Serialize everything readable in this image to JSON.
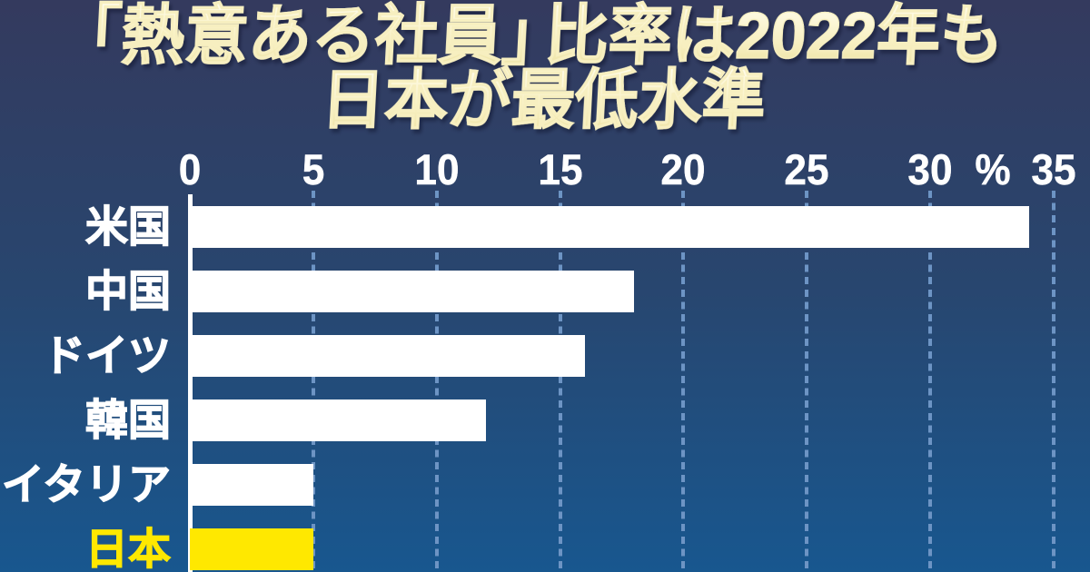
{
  "title": {
    "line1": "「熱意ある社員」比率は2022年も",
    "line2": "日本が最低水準"
  },
  "chart_data": {
    "type": "bar",
    "orientation": "horizontal",
    "title": "「熱意ある社員」比率は2022年も日本が最低水準",
    "categories": [
      "米国",
      "中国",
      "ドイツ",
      "韓国",
      "イタリア",
      "日本"
    ],
    "values": [
      34,
      18,
      16,
      12,
      5,
      5
    ],
    "xlim": [
      0,
      35
    ],
    "xticks": [
      0,
      5,
      10,
      15,
      20,
      25,
      30,
      35
    ],
    "unit_label": "%",
    "grid": "dashed-vertical-gridlines",
    "legend": "none",
    "highlight_category": "日本",
    "bar_color": "#ffffff",
    "highlight_color": "#ffe800",
    "label_color": "#ffffff",
    "highlight_label_color": "#ffe800"
  },
  "colors": {
    "background_top": "#343a5e",
    "background_middle": "#28466f",
    "background_bottom": "#18578f",
    "title_text": "#f6efc2",
    "axis_text": "#ffffff",
    "gridline": "#6d94c4",
    "axis_line": "#ffffff"
  }
}
